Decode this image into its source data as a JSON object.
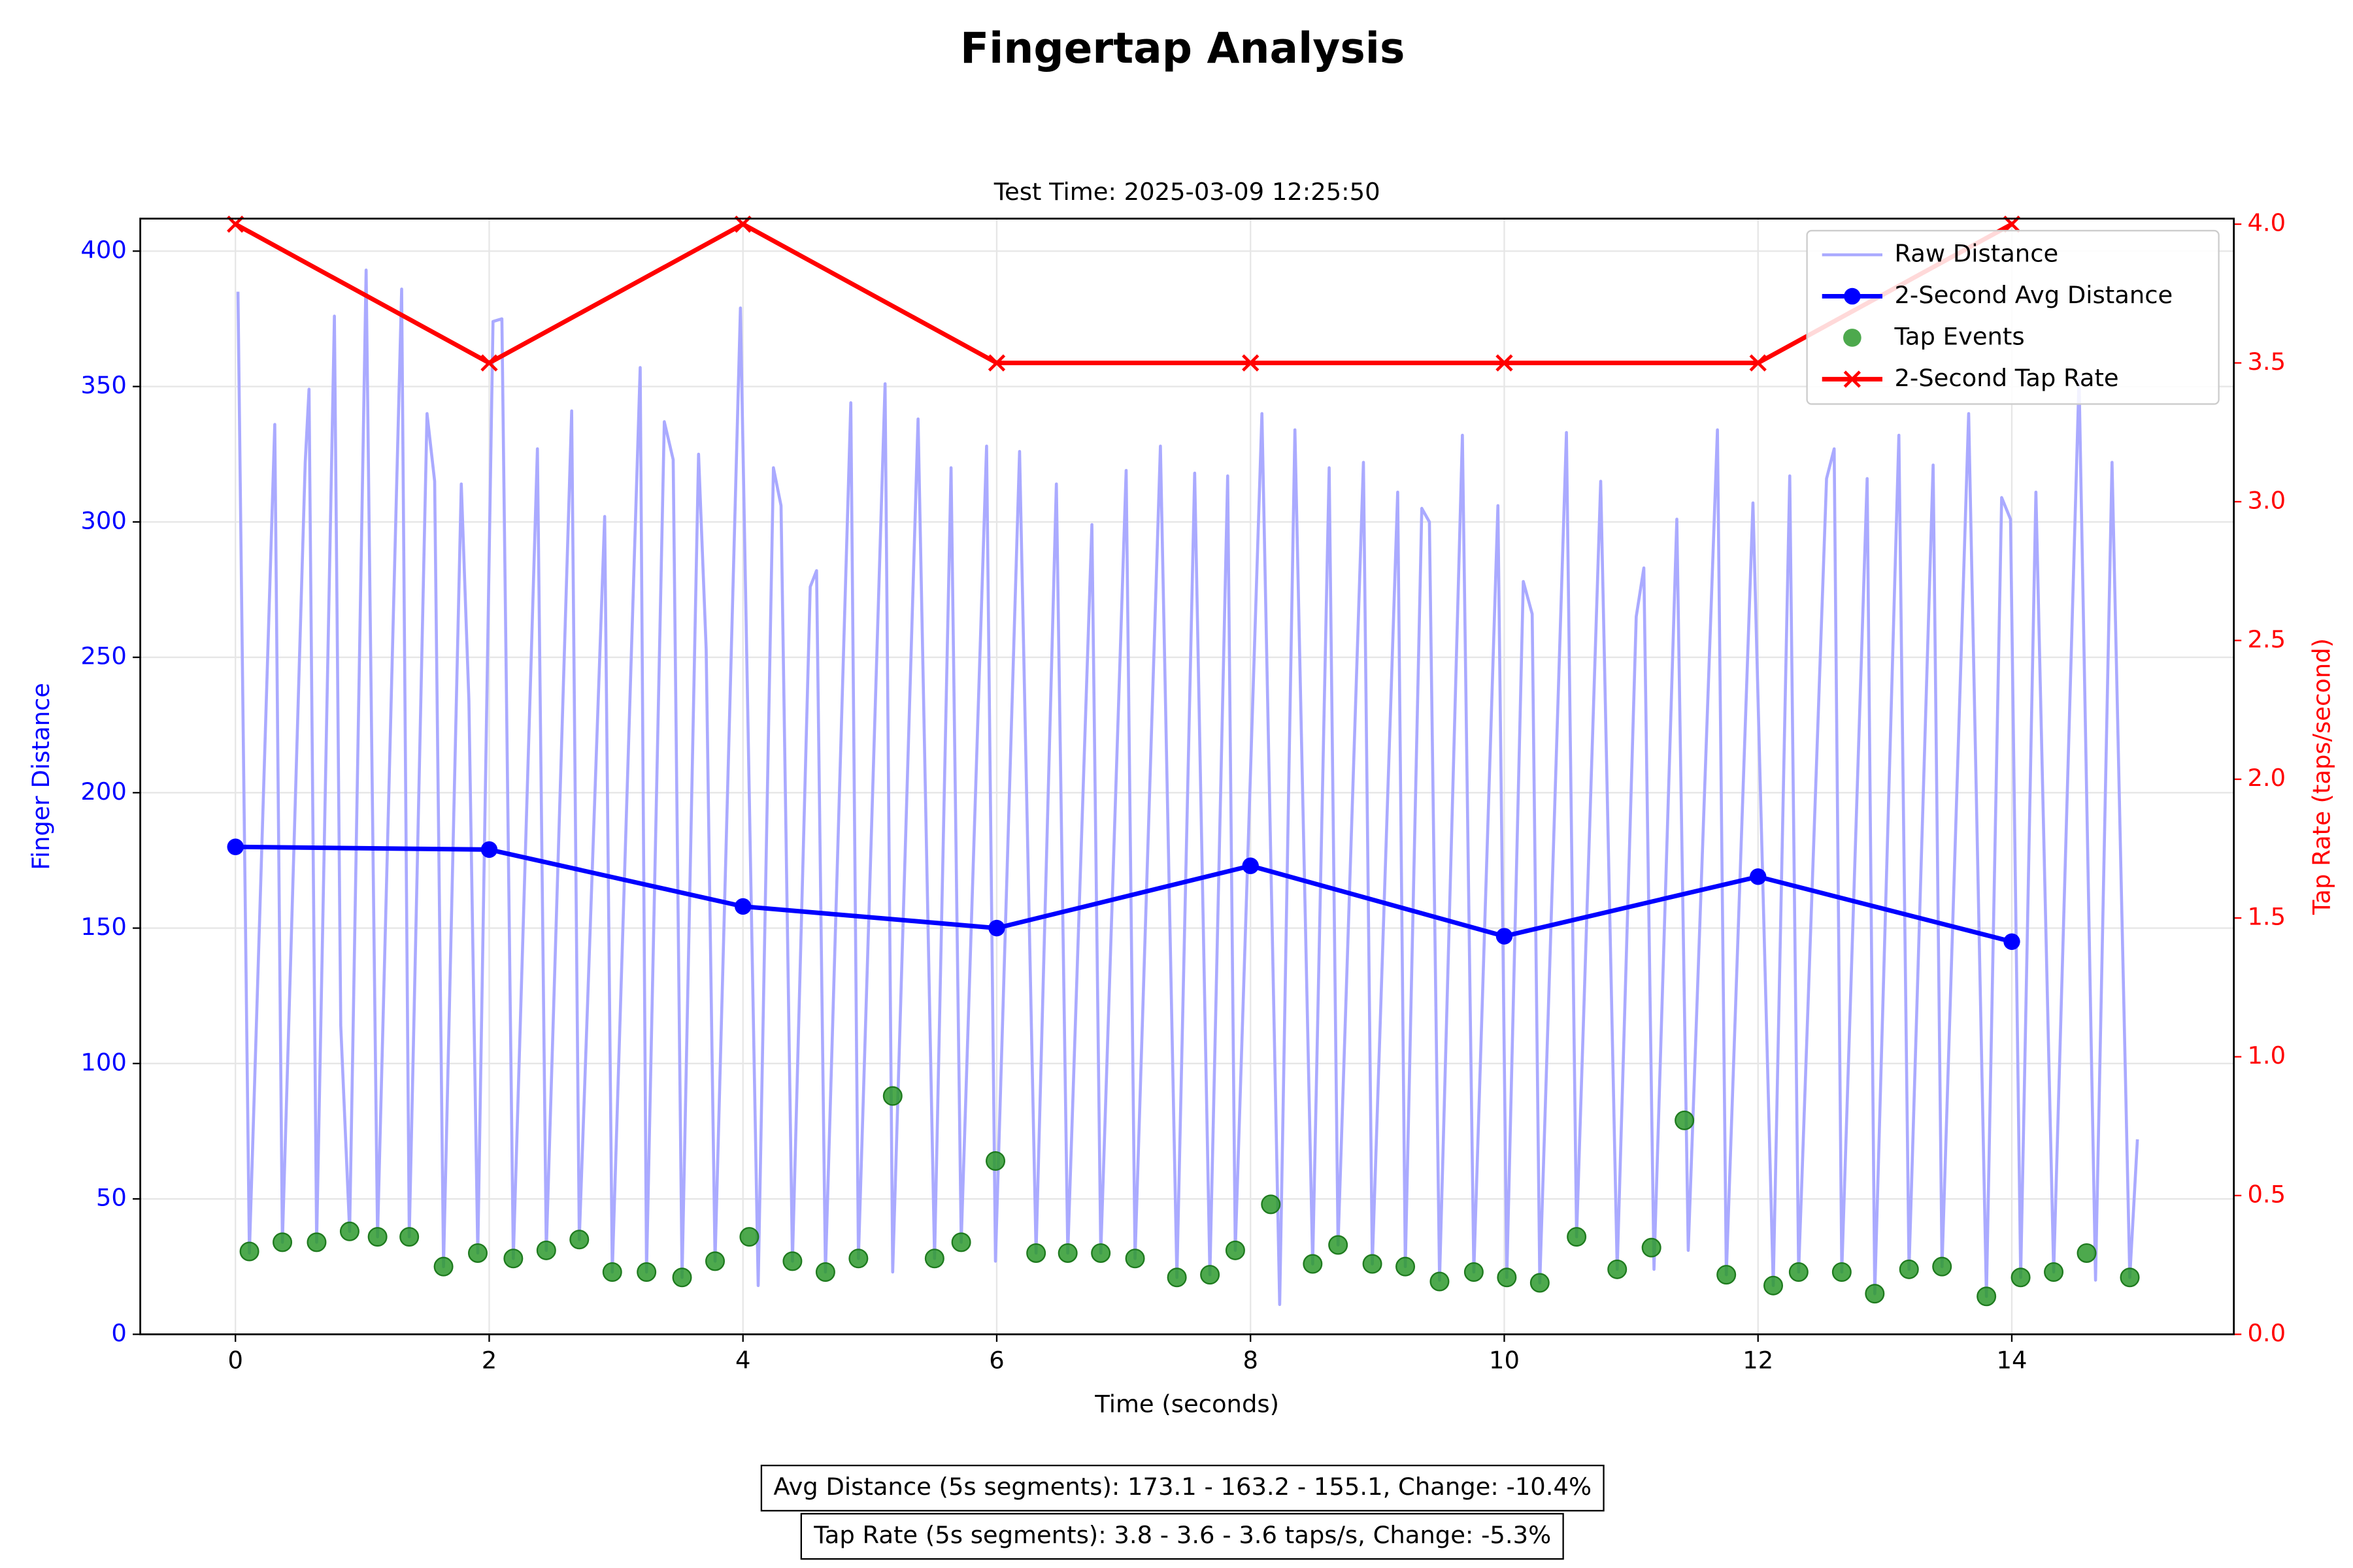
{
  "chart_data": {
    "type": "line",
    "title": "Fingertap Analysis",
    "subtitle": "Test Time: 2025-03-09 12:25:50",
    "x_label": "Time (seconds)",
    "y_label": "Finger Distance",
    "y2_label": "Tap Rate (taps/second)",
    "xlim": [
      -0.75,
      15.75
    ],
    "xticks": [
      0,
      2,
      4,
      6,
      8,
      10,
      12,
      14
    ],
    "ylim": [
      0,
      412
    ],
    "yticks": [
      0,
      50,
      100,
      150,
      200,
      250,
      300,
      350,
      400
    ],
    "y2lim": [
      0,
      4.02
    ],
    "y2ticks": [
      {
        "value": 0,
        "label": "0.0"
      },
      {
        "value": 0.5,
        "label": "0.5"
      },
      {
        "value": 1,
        "label": "1.0"
      },
      {
        "value": 1.5,
        "label": "1.5"
      },
      {
        "value": 2,
        "label": "2.0"
      },
      {
        "value": 2.5,
        "label": "2.5"
      },
      {
        "value": 3,
        "label": "3.0"
      },
      {
        "value": 3.5,
        "label": "3.5"
      },
      {
        "value": 4,
        "label": "4.0"
      }
    ],
    "grid": true,
    "legend": "upper right",
    "series": [
      {
        "name": "Raw Distance",
        "type": "line",
        "color": "#aaaaff",
        "x": [
          0.02,
          0.11,
          0.31,
          0.37,
          0.55,
          0.58,
          0.64,
          0.78,
          0.83,
          0.9,
          1.03,
          1.12,
          1.31,
          1.37,
          1.51,
          1.57,
          1.64,
          1.78,
          1.84,
          1.91,
          2.03,
          2.1,
          2.19,
          2.38,
          2.45,
          2.65,
          2.71,
          2.91,
          2.97,
          3.19,
          3.24,
          3.38,
          3.45,
          3.52,
          3.65,
          3.71,
          3.78,
          3.98,
          4.12,
          4.24,
          4.3,
          4.39,
          4.53,
          4.58,
          4.65,
          4.85,
          4.91,
          5.12,
          5.18,
          5.38,
          5.51,
          5.64,
          5.72,
          5.92,
          5.99,
          6.18,
          6.31,
          6.47,
          6.56,
          6.75,
          6.82,
          7.02,
          7.09,
          7.29,
          7.42,
          7.56,
          7.68,
          7.82,
          7.88,
          8.09,
          8.23,
          8.35,
          8.49,
          8.62,
          8.69,
          8.89,
          8.96,
          9.16,
          9.22,
          9.35,
          9.41,
          9.49,
          9.67,
          9.76,
          9.95,
          10.02,
          10.15,
          10.22,
          10.28,
          10.49,
          10.57,
          10.76,
          10.89,
          11.04,
          11.1,
          11.18,
          11.36,
          11.45,
          11.68,
          11.75,
          11.96,
          12.12,
          12.25,
          12.32,
          12.54,
          12.6,
          12.66,
          12.86,
          12.92,
          13.11,
          13.19,
          13.38,
          13.45,
          13.66,
          13.8,
          13.92,
          13.99,
          14.07,
          14.19,
          14.33,
          14.53,
          14.66,
          14.79,
          14.93,
          14.99
        ],
        "values": [
          385,
          30,
          336,
          34,
          322,
          349,
          34,
          376,
          114,
          38,
          393,
          36,
          386,
          36,
          340,
          315,
          25,
          314,
          234,
          30,
          374,
          375,
          28,
          327,
          31,
          341,
          35,
          302,
          23,
          357,
          23,
          337,
          323,
          21,
          325,
          253,
          27,
          379,
          18,
          320,
          306,
          27,
          276,
          282,
          23,
          344,
          28,
          351,
          23,
          338,
          28,
          320,
          34,
          328,
          27,
          326,
          30,
          314,
          30,
          299,
          30,
          319,
          28,
          328,
          21,
          318,
          22,
          317,
          31,
          340,
          11,
          334,
          26,
          320,
          33,
          322,
          26,
          311,
          25,
          305,
          300,
          20,
          332,
          23,
          306,
          21,
          278,
          266,
          19,
          333,
          36,
          315,
          24,
          265,
          283,
          24,
          301,
          31,
          334,
          22,
          307,
          18,
          317,
          23,
          316,
          327,
          23,
          316,
          15,
          332,
          24,
          321,
          25,
          340,
          14,
          309,
          301,
          21,
          311,
          23,
          353,
          20,
          322,
          21,
          72
        ]
      },
      {
        "name": "2-Second Avg Distance",
        "type": "line",
        "marker": "o",
        "color": "#0000ff",
        "x": [
          0,
          2,
          4,
          6,
          8,
          10,
          12,
          14
        ],
        "values": [
          180,
          179,
          158,
          150,
          173,
          147,
          169,
          145
        ]
      },
      {
        "name": "Tap Events",
        "type": "scatter",
        "color": "#2e9a2e",
        "x": [
          0.11,
          0.37,
          0.64,
          0.9,
          1.12,
          1.37,
          1.64,
          1.91,
          2.19,
          2.45,
          2.71,
          2.97,
          3.24,
          3.52,
          3.78,
          4.05,
          4.39,
          4.65,
          4.91,
          5.18,
          5.51,
          5.72,
          5.99,
          6.31,
          6.56,
          6.82,
          7.09,
          7.42,
          7.68,
          7.88,
          8.16,
          8.49,
          8.69,
          8.96,
          9.22,
          9.49,
          9.76,
          10.02,
          10.28,
          10.57,
          10.89,
          11.16,
          11.42,
          11.75,
          12.12,
          12.32,
          12.66,
          12.92,
          13.19,
          13.45,
          13.8,
          14.07,
          14.33,
          14.59,
          14.93
        ],
        "values": [
          30.6,
          34,
          34,
          38,
          36,
          36,
          25,
          30,
          28,
          31,
          35,
          23,
          23,
          21,
          27,
          36,
          27,
          23,
          28,
          88,
          28,
          34,
          64,
          30,
          30,
          30,
          28,
          21,
          22,
          31,
          48,
          26,
          33,
          26,
          25,
          19.5,
          23,
          21,
          19,
          36,
          24,
          32,
          79,
          22,
          18,
          23,
          23,
          15,
          24,
          25,
          14,
          21,
          23,
          30,
          21
        ]
      },
      {
        "name": "2-Second Tap Rate",
        "type": "line",
        "marker": "x",
        "axis": "y2",
        "color": "#ff0000",
        "x": [
          0,
          2,
          4,
          6,
          8,
          10,
          12,
          14
        ],
        "values": [
          4,
          3.5,
          4,
          3.5,
          3.5,
          3.5,
          3.5,
          4
        ]
      }
    ],
    "annotations": [
      "Avg Distance (5s segments): 173.1 - 163.2 - 155.1, Change: -10.4%",
      "Tap Rate (5s segments): 3.8 - 3.6 - 3.6 taps/s, Change: -5.3%"
    ]
  }
}
